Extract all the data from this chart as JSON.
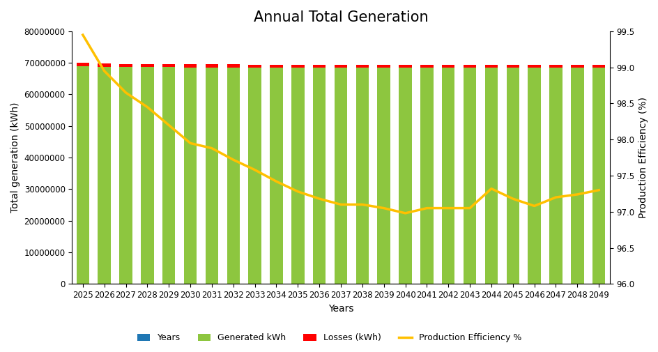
{
  "title": "Annual Total Generation",
  "xlabel": "Years",
  "ylabel_left": "Total generation (kWh)",
  "ylabel_right": "Production Efficiency (%)",
  "years": [
    2025,
    2026,
    2027,
    2028,
    2029,
    2030,
    2031,
    2032,
    2033,
    2034,
    2035,
    2036,
    2037,
    2038,
    2039,
    2040,
    2041,
    2042,
    2043,
    2044,
    2045,
    2046,
    2047,
    2048,
    2049
  ],
  "generated_kwh": [
    69000000,
    68800000,
    68700000,
    68700000,
    68650000,
    68600000,
    68600000,
    68600000,
    68550000,
    68550000,
    68500000,
    68500000,
    68400000,
    68400000,
    68400000,
    68400000,
    68400000,
    68400000,
    68400000,
    68450000,
    68400000,
    68400000,
    68400000,
    68400000,
    68500000
  ],
  "losses_kwh": [
    1000000,
    1000000,
    950000,
    900000,
    900000,
    900000,
    900000,
    900000,
    900000,
    900000,
    900000,
    900000,
    900000,
    900000,
    900000,
    900000,
    900000,
    900000,
    900000,
    900000,
    900000,
    900000,
    900000,
    900000,
    900000
  ],
  "production_efficiency": [
    99.45,
    98.95,
    98.65,
    98.45,
    98.2,
    97.95,
    97.88,
    97.72,
    97.58,
    97.42,
    97.28,
    97.18,
    97.1,
    97.1,
    97.05,
    96.98,
    97.05,
    97.05,
    97.05,
    97.32,
    97.18,
    97.08,
    97.2,
    97.24,
    97.3
  ],
  "bar_color_green": "#8DC63F",
  "bar_color_red": "#FF0000",
  "bar_color_blue": "#4472C4",
  "line_color": "#FFC000",
  "ylim_left": [
    0,
    80000000
  ],
  "ylim_right": [
    96,
    99.5
  ],
  "yticks_left": [
    0,
    10000000,
    20000000,
    30000000,
    40000000,
    50000000,
    60000000,
    70000000,
    80000000
  ],
  "yticks_right": [
    96,
    96.5,
    97,
    97.5,
    98,
    98.5,
    99,
    99.5
  ],
  "legend_labels": [
    "Years",
    "Generated kWh",
    "Losses (kWh)",
    "Production Efficiency %"
  ],
  "background_color": "#FFFFFF",
  "title_fontsize": 15,
  "axis_label_fontsize": 10,
  "tick_fontsize": 8.5,
  "bar_width": 0.6,
  "line_width": 2.5
}
